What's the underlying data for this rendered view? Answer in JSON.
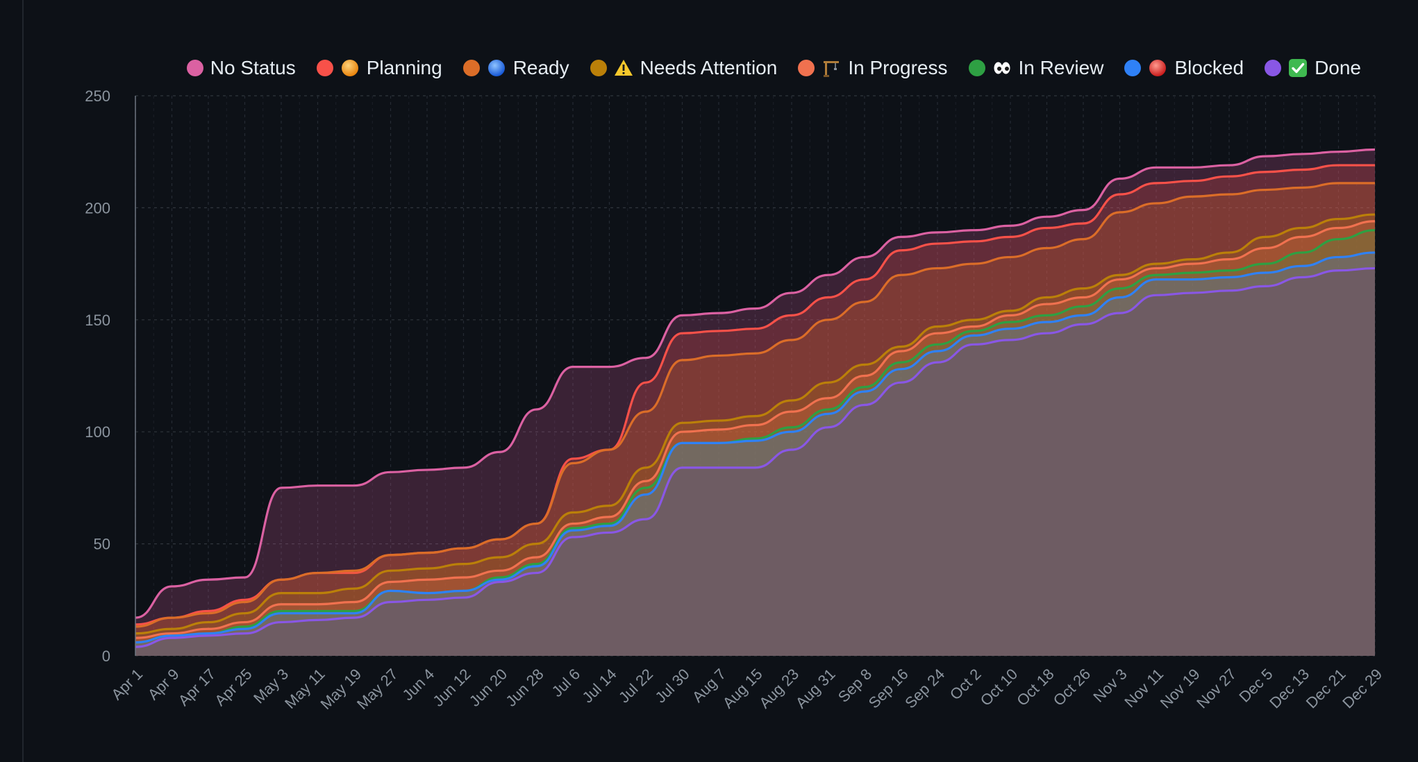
{
  "chart_data": {
    "type": "area",
    "title": "",
    "xlabel": "",
    "ylabel": "",
    "ylim": [
      0,
      250
    ],
    "yticks": [
      "0",
      "50",
      "100",
      "150",
      "200",
      "250"
    ],
    "grid": true,
    "legend_position": "top-right",
    "xticks": [
      "Apr 1",
      "Apr 9",
      "Apr 17",
      "Apr 25",
      "May 3",
      "May 11",
      "May 19",
      "May 27",
      "Jun 4",
      "Jun 12",
      "Jun 20",
      "Jun 28",
      "Jul 6",
      "Jul 14",
      "Jul 22",
      "Jul 30",
      "Aug 7",
      "Aug 15",
      "Aug 23",
      "Aug 31",
      "Sep 8",
      "Sep 16",
      "Sep 24",
      "Oct 2",
      "Oct 10",
      "Oct 18",
      "Oct 26",
      "Nov 3",
      "Nov 11",
      "Nov 19",
      "Nov 27",
      "Dec 5",
      "Dec 13",
      "Dec 21",
      "Dec 29"
    ],
    "x": [
      "Apr 1",
      "Apr 9",
      "Apr 17",
      "Apr 25",
      "May 3",
      "May 11",
      "May 19",
      "May 27",
      "Jun 4",
      "Jun 12",
      "Jun 20",
      "Jun 28",
      "Jul 6",
      "Jul 14",
      "Jul 22",
      "Jul 30",
      "Aug 7",
      "Aug 15",
      "Aug 23",
      "Aug 31",
      "Sep 8",
      "Sep 16",
      "Sep 24",
      "Oct 2",
      "Oct 10",
      "Oct 18",
      "Oct 26",
      "Nov 3",
      "Nov 11",
      "Nov 19",
      "Nov 27",
      "Dec 5",
      "Dec 13",
      "Dec 21",
      "Dec 29"
    ],
    "series": [
      {
        "name": "Done",
        "emoji": "check-mark-icon",
        "color": "#8957e5",
        "values": [
          4,
          8,
          9,
          10,
          15,
          16,
          17,
          24,
          25,
          26,
          33,
          37,
          53,
          55,
          61,
          84,
          84,
          84,
          92,
          102,
          112,
          122,
          131,
          139,
          141,
          144,
          148,
          153,
          161,
          162,
          163,
          165,
          169,
          172,
          173
        ]
      },
      {
        "name": "Blocked",
        "emoji": "red-circle-icon",
        "color": "#2f81f7",
        "values": [
          6,
          9,
          10,
          12,
          19,
          19,
          19,
          29,
          28,
          29,
          34,
          40,
          56,
          58,
          72,
          95,
          95,
          96,
          100,
          108,
          118,
          128,
          136,
          143,
          146,
          149,
          152,
          160,
          168,
          168,
          169,
          171,
          174,
          178,
          180
        ]
      },
      {
        "name": "In Review",
        "emoji": "eyes-icon",
        "color": "#2ea043",
        "values": [
          6,
          9,
          10,
          13,
          20,
          20,
          20,
          29,
          28,
          29,
          35,
          41,
          57,
          59,
          75,
          95,
          95,
          97,
          102,
          110,
          120,
          131,
          139,
          145,
          149,
          152,
          156,
          164,
          170,
          171,
          172,
          175,
          180,
          186,
          190
        ]
      },
      {
        "name": "In Progress",
        "emoji": "construction-crane-icon",
        "color": "#f0714f",
        "values": [
          8,
          10,
          12,
          15,
          23,
          23,
          24,
          33,
          34,
          35,
          38,
          44,
          59,
          62,
          78,
          100,
          101,
          103,
          109,
          115,
          125,
          136,
          144,
          147,
          152,
          157,
          160,
          168,
          173,
          175,
          177,
          182,
          187,
          191,
          194
        ]
      },
      {
        "name": "Needs Attention",
        "emoji": "warning-icon",
        "color": "#bb8009",
        "values": [
          10,
          12,
          15,
          19,
          28,
          28,
          30,
          38,
          39,
          41,
          44,
          50,
          64,
          67,
          84,
          104,
          105,
          107,
          114,
          122,
          130,
          138,
          147,
          150,
          154,
          160,
          164,
          170,
          175,
          177,
          180,
          187,
          191,
          195,
          197
        ]
      },
      {
        "name": "Ready",
        "emoji": "blue-circle-icon",
        "color": "#db6d28",
        "values": [
          13,
          17,
          19,
          24,
          34,
          37,
          38,
          45,
          46,
          48,
          52,
          59,
          86,
          92,
          109,
          132,
          134,
          135,
          141,
          150,
          158,
          170,
          173,
          175,
          178,
          182,
          186,
          198,
          202,
          205,
          206,
          208,
          209,
          211,
          211
        ]
      },
      {
        "name": "Planning",
        "emoji": "orange-circle-icon",
        "color": "#f85149",
        "values": [
          14,
          17,
          20,
          25,
          34,
          37,
          37,
          45,
          46,
          48,
          52,
          59,
          88,
          92,
          122,
          144,
          145,
          146,
          152,
          160,
          168,
          181,
          184,
          185,
          187,
          191,
          193,
          206,
          211,
          212,
          214,
          216,
          217,
          219,
          219
        ]
      },
      {
        "name": "No Status",
        "emoji": "",
        "color": "#db61a2",
        "values": [
          17,
          31,
          34,
          35,
          75,
          76,
          76,
          82,
          83,
          84,
          91,
          110,
          129,
          129,
          133,
          152,
          153,
          155,
          162,
          170,
          178,
          187,
          189,
          190,
          192,
          196,
          199,
          213,
          218,
          218,
          219,
          223,
          224,
          225,
          226
        ]
      }
    ]
  },
  "legend": [
    {
      "label": "No Status",
      "color": "#db61a2",
      "emoji": ""
    },
    {
      "label": "Planning",
      "color": "#f85149",
      "emoji": "orange-circle-icon"
    },
    {
      "label": "Ready",
      "color": "#db6d28",
      "emoji": "blue-circle-icon"
    },
    {
      "label": "Needs Attention",
      "color": "#bb8009",
      "emoji": "warning-icon"
    },
    {
      "label": "In Progress",
      "color": "#f0714f",
      "emoji": "construction-crane-icon"
    },
    {
      "label": "In Review",
      "color": "#2ea043",
      "emoji": "eyes-icon"
    },
    {
      "label": "Blocked",
      "color": "#2f81f7",
      "emoji": "red-circle-icon"
    },
    {
      "label": "Done",
      "color": "#8957e5",
      "emoji": "check-mark-icon"
    }
  ]
}
